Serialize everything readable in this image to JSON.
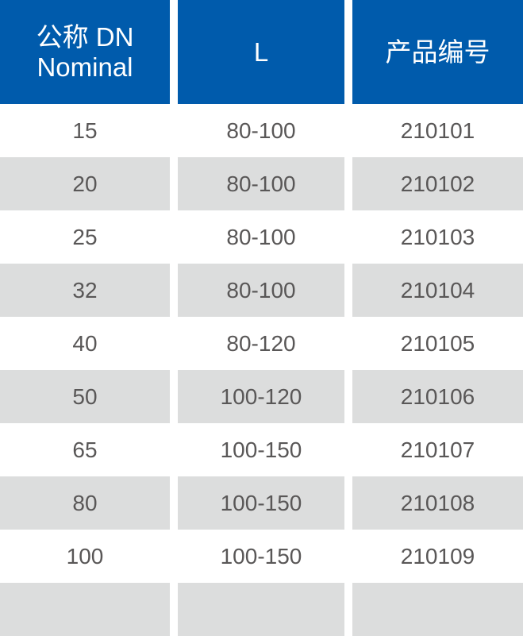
{
  "header": {
    "col1_line1": "公称 DN",
    "col1_line2": "Nominal",
    "col2": "L",
    "col3": "产品编号"
  },
  "colors": {
    "header_bg": "#005bac",
    "stripe": "#dcdddd",
    "text": "#595757"
  },
  "rows": [
    {
      "dn": "15",
      "l": "80-100",
      "code": "210101"
    },
    {
      "dn": "20",
      "l": "80-100",
      "code": "210102"
    },
    {
      "dn": "25",
      "l": "80-100",
      "code": "210103"
    },
    {
      "dn": "32",
      "l": "80-100",
      "code": "210104"
    },
    {
      "dn": "40",
      "l": "80-120",
      "code": "210105"
    },
    {
      "dn": "50",
      "l": "100-120",
      "code": "210106"
    },
    {
      "dn": "65",
      "l": "100-150",
      "code": "210107"
    },
    {
      "dn": "80",
      "l": "100-150",
      "code": "210108"
    },
    {
      "dn": "100",
      "l": "100-150",
      "code": "210109"
    }
  ]
}
